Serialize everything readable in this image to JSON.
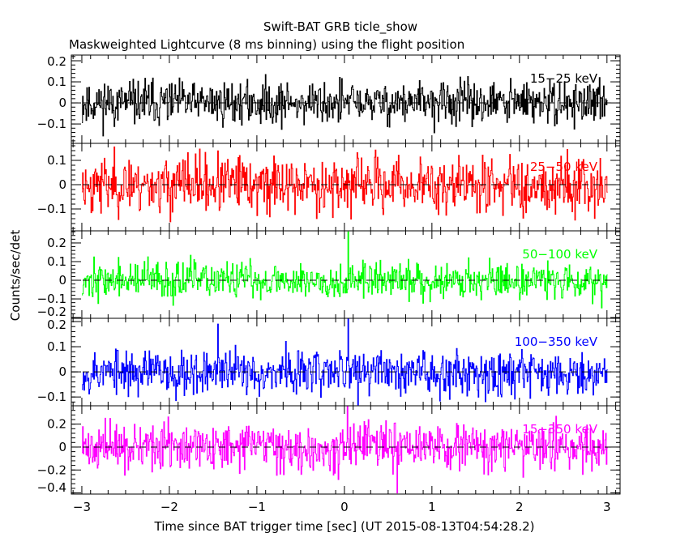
{
  "chart_data": {
    "type": "line",
    "title": "Swift-BAT GRB ticle_show",
    "subtitle": "Maskweighted Lightcurve (8 ms binning) using the flight position",
    "xlabel": "Time since BAT trigger time [sec] (UT 2015-08-13T04:54:28.2)",
    "ylabel": "Counts/sec/det",
    "xlim": [
      -3.12,
      3.15
    ],
    "x_range": [
      -3.0,
      3.0
    ],
    "bin_size_sec": 0.008,
    "x_ticks": [
      -3,
      -2,
      -1,
      0,
      1,
      2,
      3
    ],
    "x_tick_labels": [
      "−3",
      "−2",
      "−1",
      "0",
      "1",
      "2",
      "3"
    ],
    "panels": [
      {
        "name": "15-25 keV",
        "label": "15−25 keV",
        "color": "#000000",
        "ylim": [
          -0.192,
          0.227
        ],
        "noise_sigma": 0.052,
        "seed": 11,
        "y_ticks": [
          -0.1,
          0,
          0.1,
          0.2
        ],
        "y_tick_labels": [
          "−0.1",
          "0",
          "0.1",
          "0.2"
        ],
        "spikes": []
      },
      {
        "name": "25-50 keV",
        "label": "25−50 keV",
        "color": "#ff0000",
        "ylim": [
          -0.19,
          0.17
        ],
        "noise_sigma": 0.058,
        "seed": 23,
        "y_ticks": [
          -0.1,
          0,
          0.1
        ],
        "y_tick_labels": [
          "−0.1",
          "0",
          "0.1"
        ],
        "spikes": []
      },
      {
        "name": "50-100 keV",
        "label": "50−100 keV",
        "color": "#00ff00",
        "ylim": [
          -0.204,
          0.265
        ],
        "noise_sigma": 0.05,
        "seed": 37,
        "y_ticks": [
          -0.2,
          -0.1,
          0,
          0.1,
          0.2
        ],
        "y_tick_labels": [
          "−0.2",
          "−0.1",
          "0",
          "0.1",
          "0.2"
        ],
        "spikes": [
          {
            "t": 0.04,
            "value": 0.26
          }
        ]
      },
      {
        "name": "100-350 keV",
        "label": "100−350 keV",
        "color": "#0000ff",
        "ylim": [
          -0.135,
          0.213
        ],
        "noise_sigma": 0.045,
        "seed": 53,
        "y_ticks": [
          -0.1,
          0,
          0.1,
          0.2
        ],
        "y_tick_labels": [
          "−0.1",
          "0",
          "0.1",
          "0.2"
        ],
        "spikes": [
          {
            "t": 0.04,
            "value": 0.21
          },
          {
            "t": -1.45,
            "value": 0.19
          }
        ]
      },
      {
        "name": "15-350 keV",
        "label": "15−350 keV",
        "color": "#ff00ff",
        "ylim": [
          -0.41,
          0.36
        ],
        "noise_sigma": 0.1,
        "seed": 71,
        "y_ticks": [
          -0.4,
          -0.2,
          0,
          0.2
        ],
        "y_tick_labels": [
          "−0.4",
          "−0.2",
          "0",
          "0.2"
        ],
        "spikes": [
          {
            "t": 0.03,
            "value": 0.36
          },
          {
            "t": 0.6,
            "value": -0.4
          }
        ]
      }
    ]
  }
}
